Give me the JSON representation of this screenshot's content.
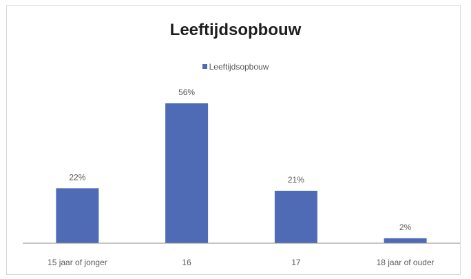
{
  "chart_data": {
    "type": "bar",
    "title": "Leeftijdsopbouw",
    "categories": [
      "15 jaar of jonger",
      "16",
      "17",
      "18 jaar of ouder"
    ],
    "series": [
      {
        "name": "Leeftijdsopbouw",
        "values": [
          22,
          56,
          21,
          2
        ],
        "labels": [
          "22%",
          "56%",
          "21%",
          "2%"
        ],
        "color": "#4f6bb6"
      }
    ],
    "ylim": [
      0,
      56
    ],
    "grid": false,
    "legend_position": "top-center",
    "axis_color": "#8c8c8c"
  }
}
